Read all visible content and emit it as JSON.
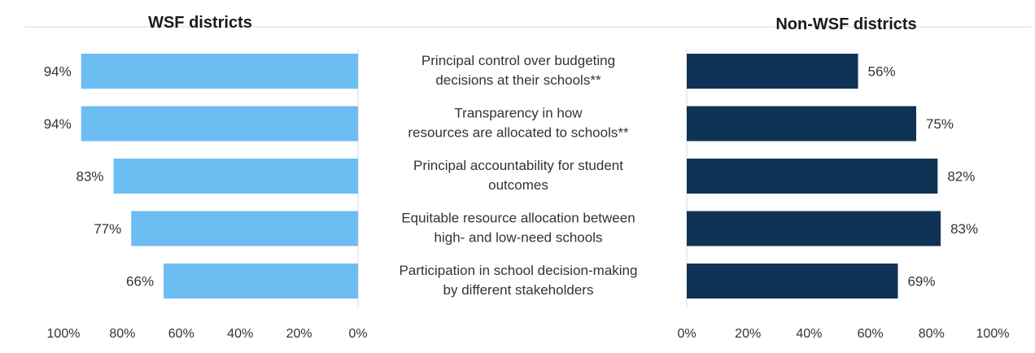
{
  "chart_data": {
    "type": "bar",
    "orientation": "horizontal",
    "layout": "butterfly",
    "categories": [
      [
        "Principal control over budgeting",
        "decisions at their schools**"
      ],
      [
        "Transparency in how",
        "resources are allocated to schools**"
      ],
      [
        "Principal accountability for student",
        "outcomes"
      ],
      [
        "Equitable resource allocation between",
        "high- and low-need schools"
      ],
      [
        "Participation in school decision-making",
        "by different stakeholders"
      ]
    ],
    "series": [
      {
        "name": "WSF districts",
        "values": [
          94,
          94,
          83,
          77,
          66
        ],
        "labels": [
          "94%",
          "94%",
          "83%",
          "77%",
          "66%"
        ],
        "color": "#6CBDF2",
        "direction": "right-to-left"
      },
      {
        "name": "Non-WSF districts",
        "values": [
          56,
          75,
          82,
          83,
          69
        ],
        "labels": [
          "56%",
          "75%",
          "82%",
          "83%",
          "69%"
        ],
        "color": "#0F3355",
        "direction": "left-to-right"
      }
    ],
    "left_ticks": [
      "100%",
      "80%",
      "60%",
      "40%",
      "20%",
      "0%"
    ],
    "right_ticks": [
      "0%",
      "20%",
      "40%",
      "60%",
      "80%",
      "100%"
    ],
    "xlim": [
      0,
      100
    ],
    "grid": false,
    "axis_line_color": "#d9d9d9"
  }
}
